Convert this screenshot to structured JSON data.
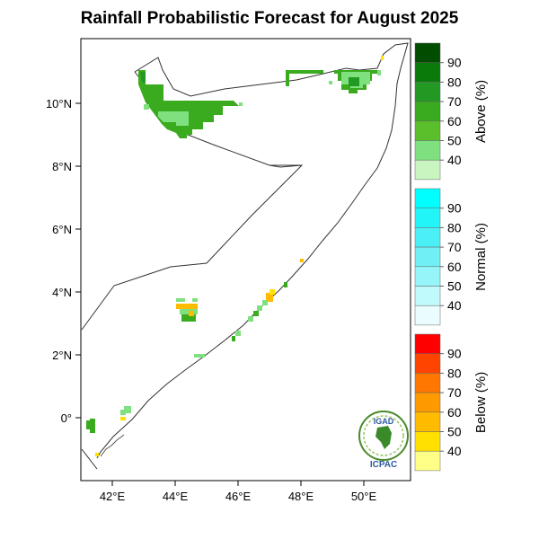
{
  "title": "Rainfall Probabilistic Forecast for August 2025",
  "map": {
    "region": "Somalia",
    "lon_labels": [
      "42°E",
      "44°E",
      "46°E",
      "48°E",
      "50°E"
    ],
    "lat_labels": [
      "10°N",
      "8°N",
      "6°N",
      "4°N",
      "2°N",
      "0°"
    ]
  },
  "legends": [
    {
      "id": "above",
      "title": "Above (%)",
      "levels": [
        "90",
        "80",
        "70",
        "60",
        "50",
        "40"
      ],
      "colors": [
        "#004d00",
        "#0a7a0a",
        "#229922",
        "#3aaa1e",
        "#5abf2a",
        "#7fe07f",
        "#c8f5c0"
      ]
    },
    {
      "id": "normal",
      "title": "Normal (%)",
      "levels": [
        "90",
        "80",
        "70",
        "60",
        "50",
        "40"
      ],
      "colors": [
        "#00ffff",
        "#22f5f8",
        "#4af0f5",
        "#70f0f5",
        "#95f5f8",
        "#c0fafc",
        "#eafcfd"
      ]
    },
    {
      "id": "below",
      "title": "Below (%)",
      "levels": [
        "90",
        "80",
        "70",
        "60",
        "50",
        "40"
      ],
      "colors": [
        "#ff0000",
        "#ff4400",
        "#ff7700",
        "#ff9900",
        "#ffbb00",
        "#ffe000",
        "#ffff88"
      ]
    }
  ],
  "logo": {
    "top_text": "IGAD",
    "bottom_text": "ICPAC"
  }
}
